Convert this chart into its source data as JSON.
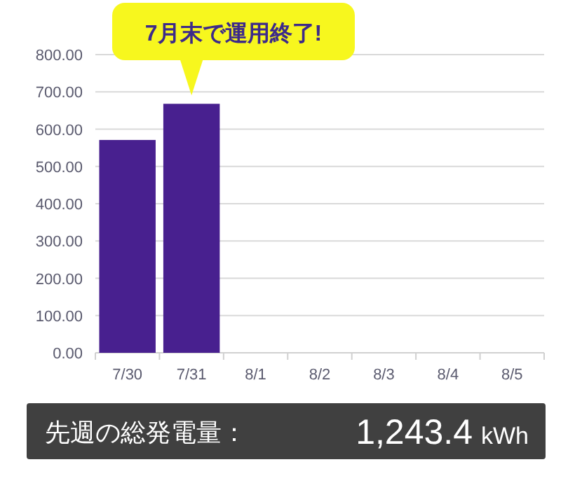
{
  "chart_data": {
    "type": "bar",
    "categories": [
      "7/30",
      "7/31",
      "8/1",
      "8/2",
      "8/3",
      "8/4",
      "8/5"
    ],
    "values": [
      571,
      668,
      null,
      null,
      null,
      null,
      null
    ],
    "color": "#48208f",
    "ylim": [
      0,
      800
    ],
    "yticks": [
      {
        "value": 0,
        "label": "0.00"
      },
      {
        "value": 100,
        "label": "100.00"
      },
      {
        "value": 200,
        "label": "200.00"
      },
      {
        "value": 300,
        "label": "300.00"
      },
      {
        "value": 400,
        "label": "400.00"
      },
      {
        "value": 500,
        "label": "500.00"
      },
      {
        "value": 600,
        "label": "600.00"
      },
      {
        "value": 700,
        "label": "700.00"
      },
      {
        "value": 800,
        "label": "800.00"
      }
    ],
    "grid": "y",
    "annotations": [
      {
        "text": "7月末で運用終了!",
        "x": "7/31",
        "y": 668
      },
      "先週の総発電量：",
      "1,243.4",
      "kWh"
    ]
  }
}
